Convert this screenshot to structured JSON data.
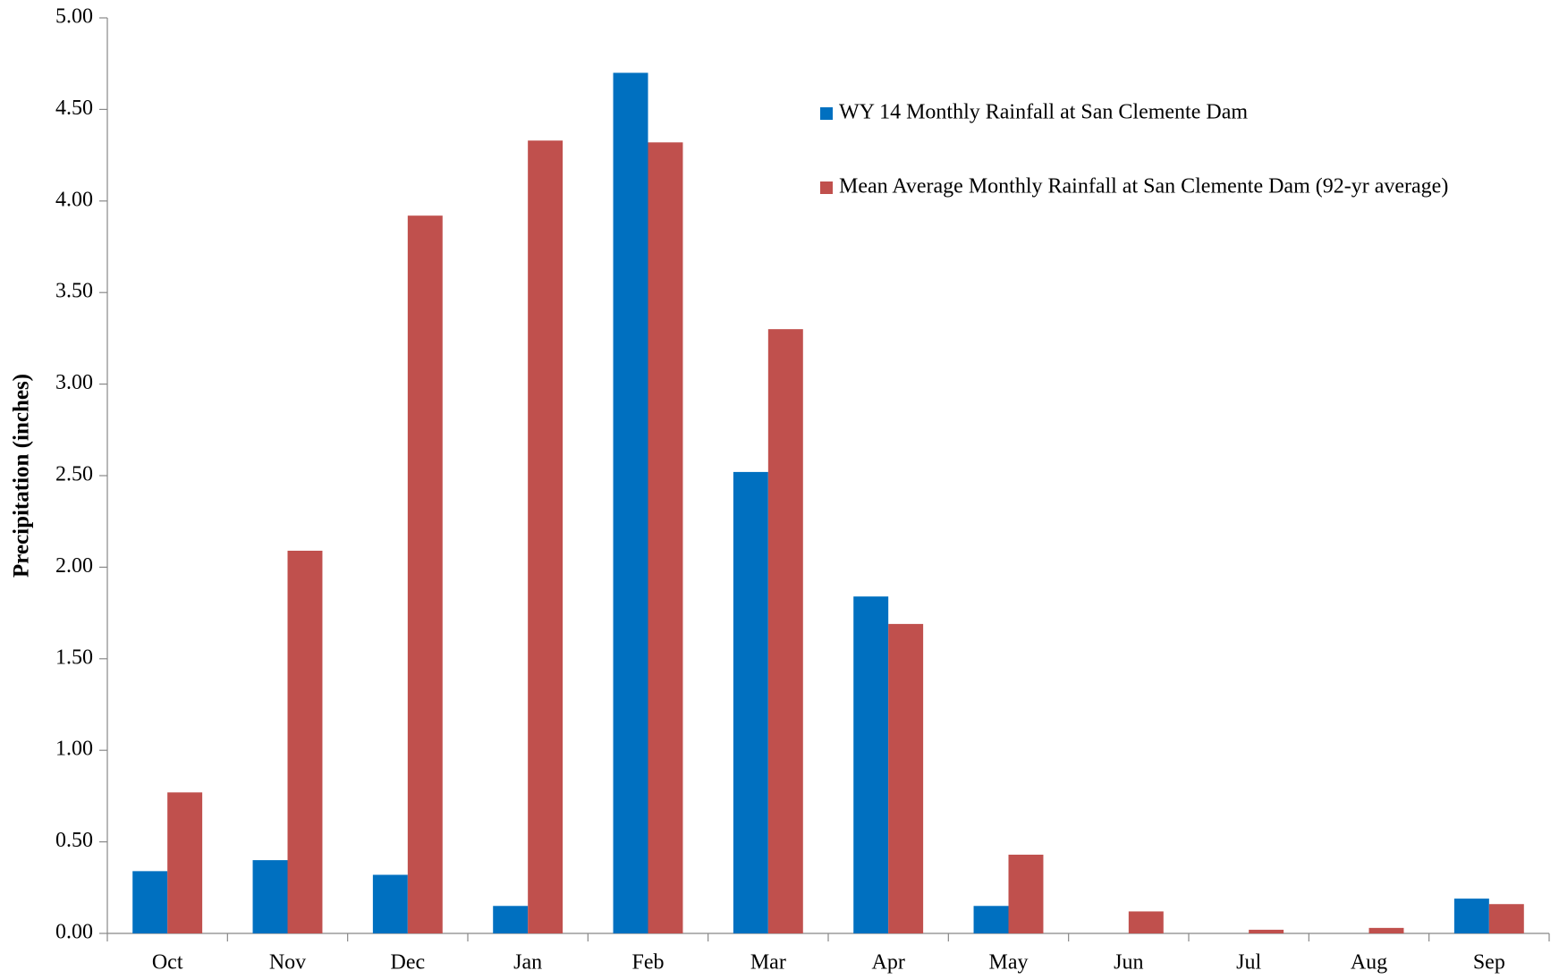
{
  "chart_data": {
    "type": "bar",
    "y_axis_label": "Precipitation (inches)",
    "categories": [
      "Oct",
      "Nov",
      "Dec",
      "Jan",
      "Feb",
      "Mar",
      "Apr",
      "May",
      "Jun",
      "Jul",
      "Aug",
      "Sep"
    ],
    "series": [
      {
        "name": "WY 14 Monthly Rainfall at San Clemente Dam",
        "color": "#0070c0",
        "values": [
          0.34,
          0.4,
          0.32,
          0.15,
          4.7,
          2.52,
          1.84,
          0.15,
          0,
          0,
          0,
          0.19
        ]
      },
      {
        "name": "Mean Average Monthly Rainfall at San Clemente Dam (92-yr average)",
        "color": "#c0504d",
        "values": [
          0.77,
          2.09,
          3.92,
          4.33,
          4.32,
          3.3,
          1.69,
          0.43,
          0.12,
          0.02,
          0.03,
          0.16
        ]
      }
    ],
    "ylim": [
      0,
      5
    ],
    "yticks": [
      {
        "value": 0,
        "label": "0.00"
      },
      {
        "value": 0.5,
        "label": "0.50"
      },
      {
        "value": 1,
        "label": "1.00"
      },
      {
        "value": 1.5,
        "label": "1.50"
      },
      {
        "value": 2,
        "label": "2.00"
      },
      {
        "value": 2.5,
        "label": "2.50"
      },
      {
        "value": 3,
        "label": "3.00"
      },
      {
        "value": 3.5,
        "label": "3.50"
      },
      {
        "value": 4,
        "label": "4.00"
      },
      {
        "value": 4.5,
        "label": "4.50"
      },
      {
        "value": 5,
        "label": "5.00"
      }
    ],
    "grid": false,
    "legend_position": "upper right"
  }
}
